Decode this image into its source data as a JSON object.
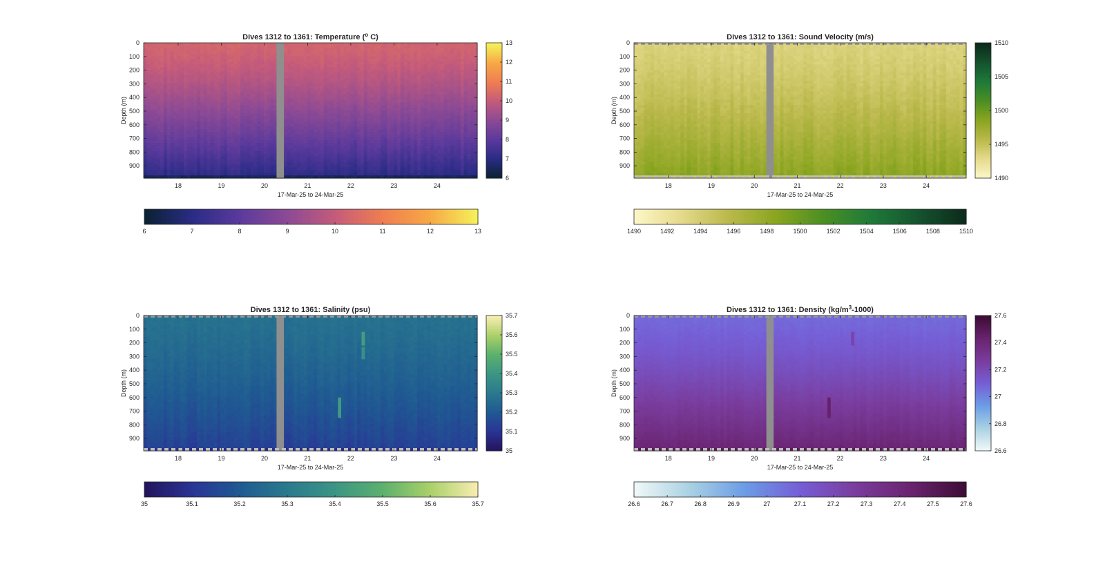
{
  "colors": {
    "gap": "#8f8f8f",
    "axis": "#262626",
    "temperature_map": [
      "#0b2233",
      "#2a2c86",
      "#5b3a9c",
      "#8c4a95",
      "#c45b7b",
      "#ef7d52",
      "#f7a845",
      "#f4f05a"
    ],
    "sound_velocity_map": [
      "#fcf6c6",
      "#e4d98a",
      "#b9b84a",
      "#8aa520",
      "#4b8f23",
      "#1f7a39",
      "#15542f",
      "#0c2b1c"
    ],
    "salinity_map": [
      "#24145e",
      "#2a3596",
      "#1f5a92",
      "#2a7a8e",
      "#3b9584",
      "#5cb06e",
      "#a8d068",
      "#f7ecb0"
    ],
    "density_map": [
      "#eff8f7",
      "#a9d0e3",
      "#6b9ce6",
      "#765ed6",
      "#7a3d9e",
      "#6a2470",
      "#3e0d36"
    ]
  },
  "chart_data": [
    {
      "type": "heatmap",
      "key": "temperature",
      "title_prefix": "Dives 1312 to 1361: Temperature (",
      "title_sup": "o",
      "title_suffix": " C)",
      "xlabel": "17-Mar-25 to 24-Mar-25",
      "ylabel": "Depth (m)",
      "xlim": [
        17.2,
        24.93
      ],
      "ylim": [
        0,
        990
      ],
      "xticks": [
        18,
        19,
        20,
        21,
        22,
        23,
        24
      ],
      "yticks": [
        0,
        100,
        200,
        300,
        400,
        500,
        600,
        700,
        800,
        900
      ],
      "gap": [
        20.28,
        20.45
      ],
      "clim": [
        6,
        13
      ],
      "colorbar_ticks": [
        6,
        7,
        8,
        9,
        10,
        11,
        12,
        13
      ],
      "surface_value": 10.3,
      "bottom_value": 7.0,
      "bottom_row_value": 6.5,
      "noise": 0.35,
      "dashed_edges": false,
      "anomalies": []
    },
    {
      "type": "heatmap",
      "key": "sound_velocity",
      "title_prefix": "Dives 1312 to 1361: Sound Velocity (m/s)",
      "title_sup": "",
      "title_suffix": "",
      "xlabel": "17-Mar-25 to 24-Mar-25",
      "ylabel": "Depth (m)",
      "xlim": [
        17.2,
        24.93
      ],
      "ylim": [
        0,
        990
      ],
      "xticks": [
        18,
        19,
        20,
        21,
        22,
        23,
        24
      ],
      "yticks": [
        0,
        100,
        200,
        300,
        400,
        500,
        600,
        700,
        800,
        900
      ],
      "gap": [
        20.28,
        20.45
      ],
      "clim": [
        1490,
        1510
      ],
      "colorbar_ticks": [
        1490,
        1495,
        1500,
        1505,
        1510
      ],
      "h_colorbar_ticks": [
        1490,
        1492,
        1494,
        1496,
        1498,
        1500,
        1502,
        1504,
        1506,
        1508,
        1510
      ],
      "surface_value": 1493.5,
      "bottom_value": 1498.5,
      "bottom_row_value": 1494.0,
      "noise": 1.2,
      "dashed_edges": true,
      "anomalies": []
    },
    {
      "type": "heatmap",
      "key": "salinity",
      "title_prefix": "Dives 1312 to 1361: Salinity (psu)",
      "title_sup": "",
      "title_suffix": "",
      "xlabel": "17-Mar-25 to 24-Mar-25",
      "ylabel": "Depth (m)",
      "xlim": [
        17.2,
        24.93
      ],
      "ylim": [
        0,
        990
      ],
      "xticks": [
        18,
        19,
        20,
        21,
        22,
        23,
        24
      ],
      "yticks": [
        0,
        100,
        200,
        300,
        400,
        500,
        600,
        700,
        800,
        900
      ],
      "gap": [
        20.28,
        20.45
      ],
      "clim": [
        35,
        35.7
      ],
      "colorbar_ticks": [
        35,
        35.1,
        35.2,
        35.3,
        35.4,
        35.5,
        35.6,
        35.7
      ],
      "surface_value": 35.27,
      "bottom_value": 35.13,
      "bottom_row_value": 35.08,
      "noise": 0.035,
      "dashed_edges": true,
      "anomalies": [
        {
          "x": 22.25,
          "depth_from": 120,
          "depth_to": 220,
          "value": 35.43
        },
        {
          "x": 22.25,
          "depth_from": 230,
          "depth_to": 320,
          "value": 35.38
        },
        {
          "x": 21.7,
          "depth_from": 600,
          "depth_to": 750,
          "value": 35.42
        }
      ]
    },
    {
      "type": "heatmap",
      "key": "density",
      "title_prefix": "Dives 1312 to 1361: Density (kg/m",
      "title_sup": "3",
      "title_suffix": "-1000)",
      "xlabel": "17-Mar-25 to 24-Mar-25",
      "ylabel": "Depth (m)",
      "xlim": [
        17.2,
        24.93
      ],
      "ylim": [
        0,
        990
      ],
      "xticks": [
        18,
        19,
        20,
        21,
        22,
        23,
        24
      ],
      "yticks": [
        0,
        100,
        200,
        300,
        400,
        500,
        600,
        700,
        800,
        900
      ],
      "gap": [
        20.28,
        20.45
      ],
      "clim": [
        26.6,
        27.6
      ],
      "colorbar_ticks": [
        26.6,
        26.8,
        27,
        27.2,
        27.4,
        27.6
      ],
      "h_colorbar_ticks": [
        26.6,
        26.7,
        26.8,
        26.9,
        27,
        27.1,
        27.2,
        27.3,
        27.4,
        27.5,
        27.6
      ],
      "surface_value": 27.07,
      "bottom_value": 27.42,
      "bottom_row_value": 27.5,
      "noise": 0.03,
      "dashed_edges": true,
      "anomalies": [
        {
          "x": 22.25,
          "depth_from": 120,
          "depth_to": 220,
          "value": 27.23
        },
        {
          "x": 21.7,
          "depth_from": 600,
          "depth_to": 750,
          "value": 27.45
        }
      ]
    }
  ]
}
